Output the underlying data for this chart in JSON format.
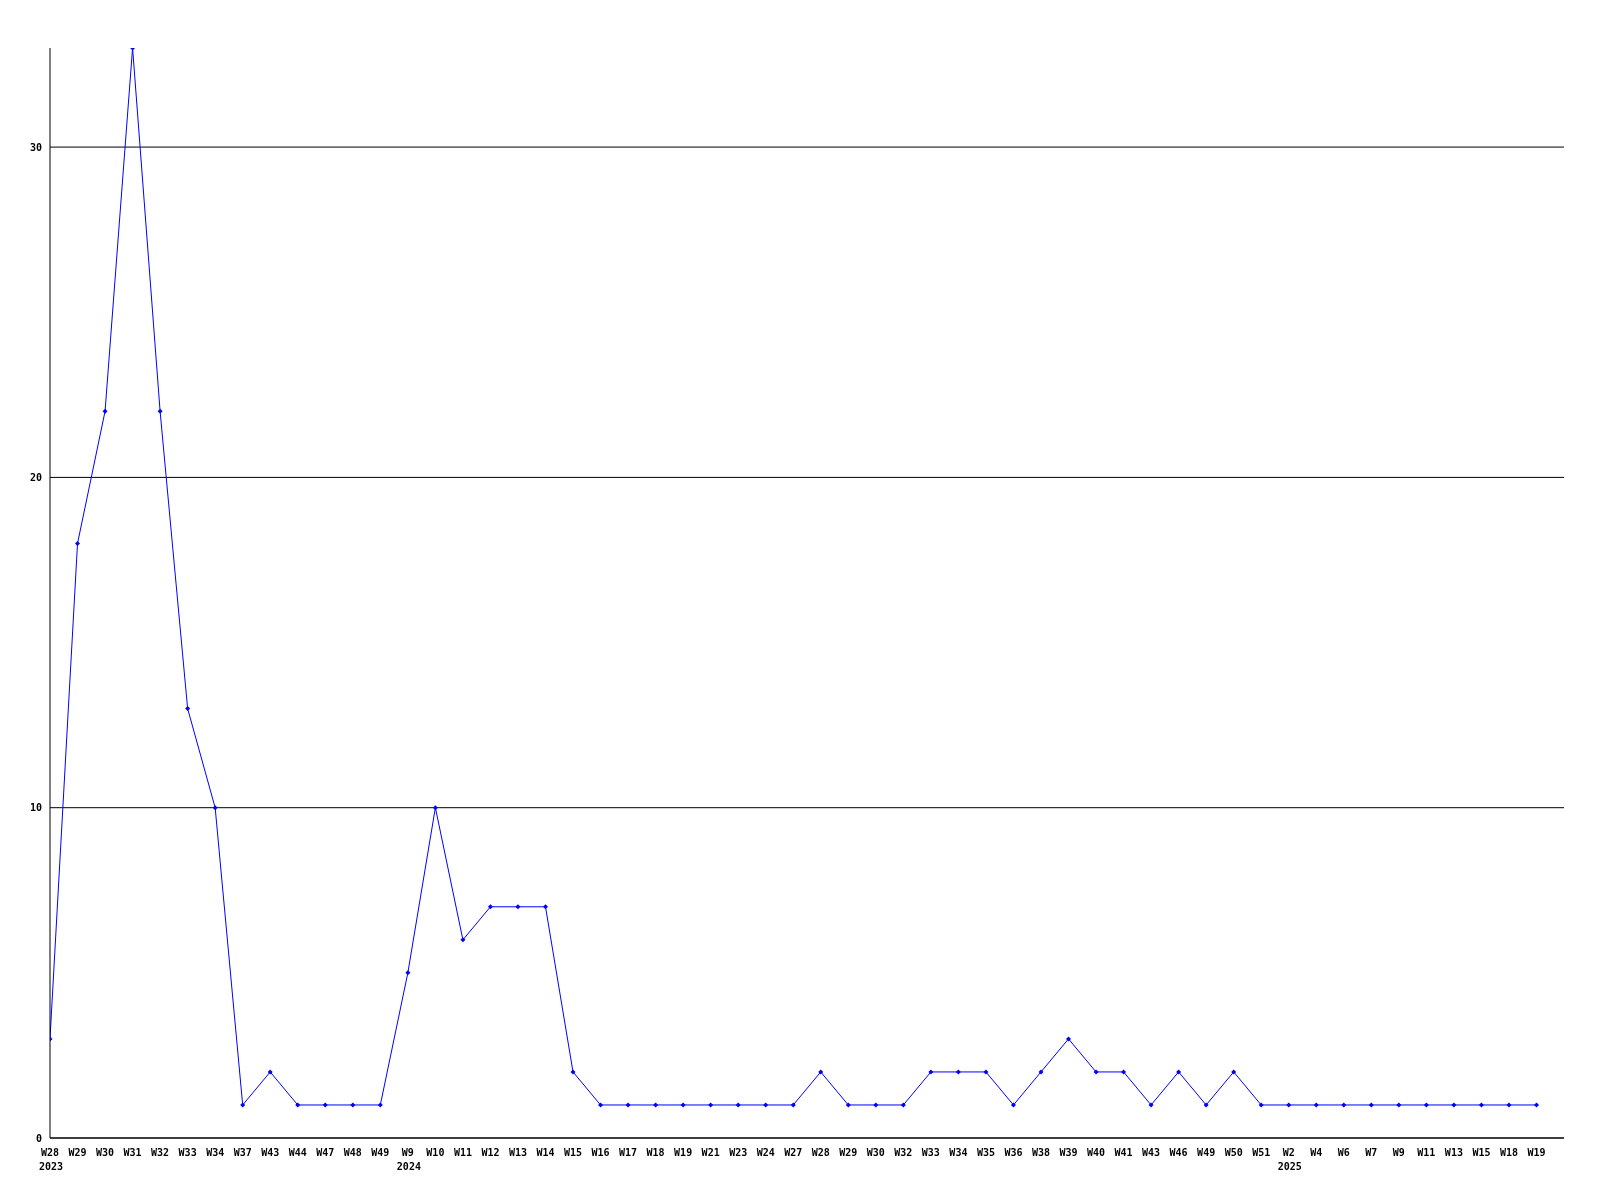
{
  "chart_data": {
    "type": "line",
    "categories": [
      "W28\n2023",
      "W29",
      "W30",
      "W31",
      "W32",
      "W33",
      "W34",
      "W37",
      "W43",
      "W44",
      "W47",
      "W48",
      "W49",
      "W9\n2024",
      "W10",
      "W11",
      "W12",
      "W13",
      "W14",
      "W15",
      "W16",
      "W17",
      "W18",
      "W19",
      "W21",
      "W23",
      "W24",
      "W27",
      "W28",
      "W29",
      "W30",
      "W32",
      "W33",
      "W34",
      "W35",
      "W36",
      "W38",
      "W39",
      "W40",
      "W41",
      "W43",
      "W46",
      "W49",
      "W50",
      "W51",
      "W2\n2025",
      "W4",
      "W6",
      "W7",
      "W9",
      "W11",
      "W13",
      "W15",
      "W18",
      "W19"
    ],
    "series": [
      {
        "color": "#0000ff",
        "values": [
          3,
          18,
          22,
          33,
          22,
          13,
          10,
          1,
          2,
          1,
          1,
          1,
          1,
          5,
          10,
          6,
          7,
          7,
          7,
          2,
          1,
          1,
          1,
          1,
          1,
          1,
          1,
          1,
          2,
          1,
          1,
          1,
          2,
          2,
          2,
          1,
          2,
          3,
          2,
          2,
          1,
          2,
          1,
          2,
          1,
          1,
          1,
          1,
          1,
          1,
          1,
          1,
          1,
          1,
          1
        ]
      }
    ],
    "ylim": [
      0,
      33
    ],
    "yticks": [
      0,
      10,
      20,
      30
    ],
    "grid": "y",
    "marker": "diamond",
    "line_style": "solid",
    "legend": false
  }
}
